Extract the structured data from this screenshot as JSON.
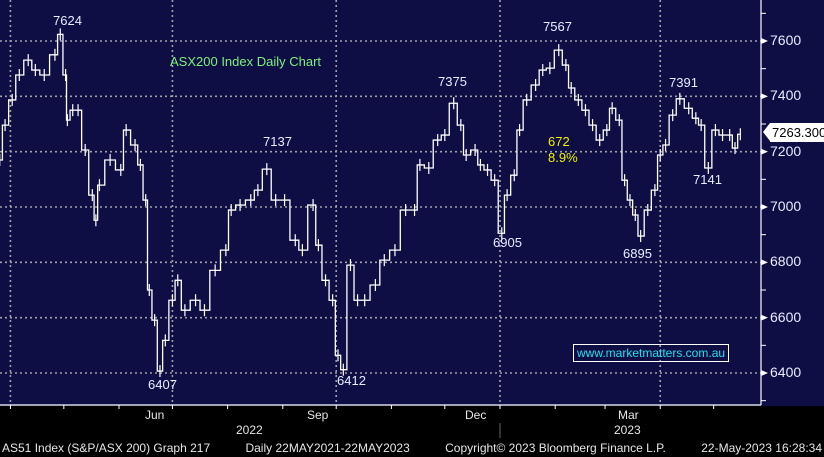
{
  "chart_data": {
    "type": "line",
    "title": "ASX200 Index Daily Chart",
    "y_ticks": [
      6400,
      6600,
      6800,
      7000,
      7200,
      7400,
      7600
    ],
    "ylim": [
      6300,
      7780
    ],
    "x_month_labels": [
      "Jun",
      "Sep",
      "Dec",
      "Mar"
    ],
    "x_year_labels": [
      "2022",
      "2023"
    ],
    "grid": true,
    "colors": {
      "background": "#0e0e44",
      "series": "#ffffff",
      "title": "#7cf07c",
      "annotation_highlight": "#f0f000",
      "watermark": "#22e0f0"
    },
    "last_price": "7263.300",
    "annotations": {
      "peak1": "7624",
      "low1": "6407",
      "peak2": "7137",
      "low2": "6412",
      "peak3": "7375",
      "low3": "6905",
      "peak4": "7567",
      "low4": "6895",
      "peak5": "7391",
      "low5": "7141",
      "move_points": "672",
      "move_pct": "8.9%"
    },
    "watermark": "www.marketmatters.com.au",
    "series": [
      {
        "x": [
          "2022-03-26",
          "2022-03-29",
          "2022-04-02",
          "2022-04-06",
          "2022-04-11",
          "2022-04-15",
          "2022-04-20",
          "2022-04-26",
          "2022-04-29",
          "2022-05-02",
          "2022-05-03",
          "2022-05-06",
          "2022-05-09",
          "2022-05-13",
          "2022-05-17",
          "2022-05-19",
          "2022-05-21",
          "2022-05-27",
          "2022-06-02",
          "2022-06-05",
          "2022-06-10",
          "2022-06-13",
          "2022-06-16",
          "2022-06-18",
          "2022-06-21",
          "2022-06-24",
          "2022-06-27",
          "2022-07-01",
          "2022-07-04",
          "2022-07-08",
          "2022-07-14",
          "2022-07-19",
          "2022-07-25",
          "2022-07-31",
          "2022-08-03",
          "2022-08-08",
          "2022-08-14",
          "2022-08-18",
          "2022-08-23",
          "2022-08-28",
          "2022-09-02",
          "2022-09-08",
          "2022-09-12",
          "2022-09-18",
          "2022-09-21",
          "2022-09-25",
          "2022-09-29",
          "2022-10-02",
          "2022-10-05",
          "2022-10-09",
          "2022-10-13",
          "2022-10-17",
          "2022-10-23",
          "2022-10-28",
          "2022-11-03",
          "2022-11-09",
          "2022-11-14",
          "2022-11-17",
          "2022-11-22",
          "2022-11-27",
          "2022-12-01",
          "2022-12-06",
          "2022-12-10",
          "2022-12-13",
          "2022-12-18",
          "2022-12-21",
          "2022-12-25",
          "2022-12-29",
          "2023-01-02",
          "2023-01-05",
          "2023-01-09",
          "2023-01-12",
          "2023-01-16",
          "2023-01-21",
          "2023-01-25",
          "2023-01-29",
          "2023-02-03",
          "2023-02-07",
          "2023-02-10",
          "2023-02-14",
          "2023-02-18",
          "2023-02-22",
          "2023-02-26",
          "2023-03-02",
          "2023-03-05",
          "2023-03-09",
          "2023-03-12",
          "2023-03-15",
          "2023-03-18",
          "2023-03-21",
          "2023-03-25",
          "2023-03-29",
          "2023-04-01",
          "2023-04-04",
          "2023-04-08",
          "2023-04-12",
          "2023-04-17",
          "2023-04-21",
          "2023-04-24",
          "2023-04-28",
          "2023-05-02",
          "2023-05-06",
          "2023-05-10",
          "2023-05-13",
          "2023-05-16"
        ],
        "y": [
          7170,
          7296,
          7387,
          7477,
          7531,
          7495,
          7477,
          7550,
          7624,
          7477,
          7314,
          7350,
          7350,
          7206,
          7043,
          6952,
          7079,
          7170,
          7134,
          7278,
          7224,
          7152,
          7025,
          6700,
          6591,
          6407,
          6518,
          6663,
          6735,
          6627,
          6663,
          6627,
          6771,
          6844,
          6989,
          7007,
          7025,
          7061,
          7137,
          7025,
          7025,
          6880,
          6844,
          7007,
          6862,
          6735,
          6663,
          6464,
          6412,
          6790,
          6663,
          6663,
          6718,
          6808,
          6844,
          6989,
          6989,
          7152,
          7141,
          7242,
          7260,
          7375,
          7296,
          7188,
          7206,
          7152,
          7134,
          7097,
          6905,
          7043,
          7115,
          7278,
          7387,
          7441,
          7495,
          7502,
          7567,
          7513,
          7430,
          7387,
          7350,
          7296,
          7242,
          7278,
          7357,
          7314,
          7097,
          7025,
          6971,
          6895,
          6989,
          7061,
          7188,
          7224,
          7332,
          7391,
          7357,
          7321,
          7296,
          7141,
          7278,
          7260,
          7260,
          7213,
          7263
        ]
      }
    ]
  },
  "footer": {
    "security": "AS51 Index (S&P/ASX 200) Graph 217",
    "range": "Daily 22MAY2021-22MAY2023",
    "copyright": "Copyright© 2023 Bloomberg Finance L.P.",
    "timestamp": "22-May-2023 16:28:34"
  }
}
